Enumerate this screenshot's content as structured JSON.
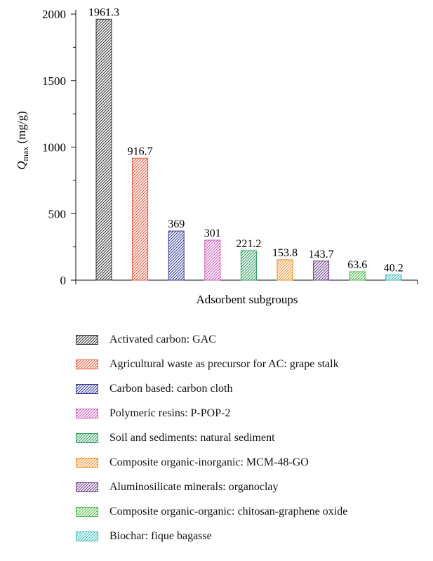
{
  "chart_data": {
    "type": "bar",
    "categories": [
      "Activated carbon: GAC",
      "Agricultural waste as precursor for AC: grape stalk",
      "Carbon based: carbon cloth",
      "Polymeric resins: P-POP-2",
      "Soil and sediments: natural sediment",
      "Composite organic-inorganic: MCM-48-GO",
      "Aluminosilicate minerals: organoclay",
      "Composite organic-organic: chitosan-graphene oxide",
      "Biochar: fique bagasse"
    ],
    "values": [
      1961.3,
      916.7,
      369,
      301,
      221.2,
      153.8,
      143.7,
      63.6,
      40.2
    ],
    "value_labels": [
      "1961.3",
      "916.7",
      "369",
      "301",
      "221.2",
      "153.8",
      "143.7",
      "63.6",
      "40.2"
    ],
    "colors": [
      "#333333",
      "#e8563a",
      "#3a3a9a",
      "#cc55bb",
      "#2a9a5a",
      "#f08c20",
      "#6a3a8a",
      "#44bb44",
      "#33bbbb"
    ],
    "pattern": "diagonal-hatch",
    "title": "",
    "xlabel": "Adsorbent subgroups",
    "ylabel_main": "Q",
    "ylabel_sub": "max",
    "ylabel_unit": " (mg/g)",
    "ylim": [
      0,
      2000
    ],
    "yticks": [
      0,
      500,
      1000,
      1500,
      2000
    ],
    "grid": false,
    "legend_position": "bottom"
  }
}
